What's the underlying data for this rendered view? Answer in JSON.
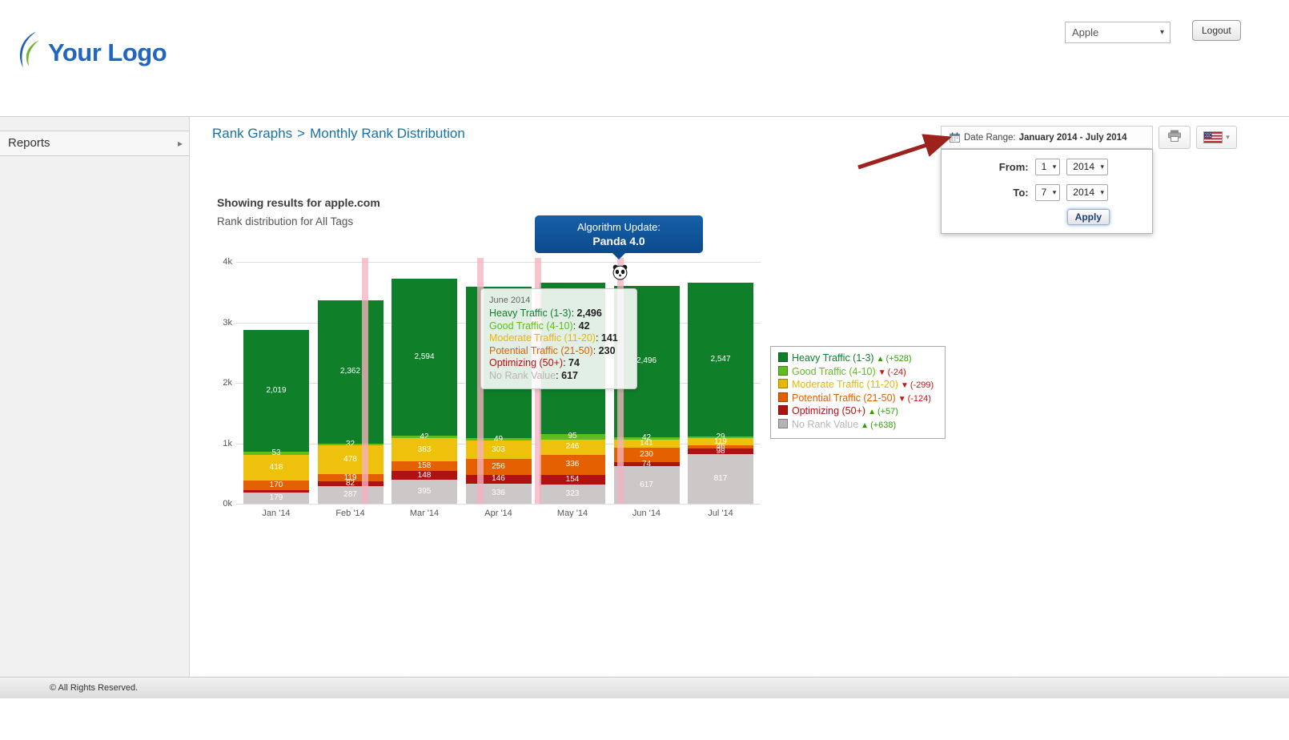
{
  "header": {
    "logo_text": "Your Logo",
    "account_dropdown_value": "Apple",
    "logout_label": "Logout"
  },
  "sidebar": {
    "items": [
      {
        "label": "Reports"
      }
    ]
  },
  "main": {
    "breadcrumb": {
      "section": "Rank Graphs",
      "separator": ">",
      "page": "Monthly Rank Distribution"
    },
    "results_heading": "Showing results for apple.com",
    "results_subheading": "Rank distribution for All Tags"
  },
  "date_range": {
    "toggle_label": "Date Range:",
    "toggle_value": "January 2014 - July 2014",
    "from_label": "From:",
    "from_month": "1",
    "from_year": "2014",
    "to_label": "To:",
    "to_month": "7",
    "to_year": "2014",
    "apply_label": "Apply"
  },
  "annotation": {
    "title": "Algorithm Update:",
    "name": "Panda 4.0"
  },
  "tooltip": {
    "title": "June 2014",
    "rows": [
      {
        "label": "Heavy Traffic (1-3)",
        "value": "2,496",
        "color": "#0f7f2a"
      },
      {
        "label": "Good Traffic (4-10)",
        "value": "42",
        "color": "#5fbe1d"
      },
      {
        "label": "Moderate Traffic (11-20)",
        "value": "141",
        "color": "#e6b800"
      },
      {
        "label": "Potential Traffic (21-50)",
        "value": "230",
        "color": "#e25f00"
      },
      {
        "label": "Optimizing (50+)",
        "value": "74",
        "color": "#b01111"
      },
      {
        "label": "No Rank Value",
        "value": "617",
        "color": "#b8b3b3"
      }
    ]
  },
  "legend": {
    "items": [
      {
        "label": "Heavy Traffic (1-3)",
        "color": "#0f7f2a",
        "direction": "up",
        "delta": "(+528)"
      },
      {
        "label": "Good Traffic (4-10)",
        "color": "#5fbe1d",
        "direction": "down",
        "delta": "(-24)"
      },
      {
        "label": "Moderate Traffic (11-20)",
        "color": "#e6b800",
        "direction": "down",
        "delta": "(-299)"
      },
      {
        "label": "Potential Traffic (21-50)",
        "color": "#e25f00",
        "direction": "down",
        "delta": "(-124)"
      },
      {
        "label": "Optimizing (50+)",
        "color": "#b01111",
        "direction": "up",
        "delta": "(+57)"
      },
      {
        "label": "No Rank Value",
        "color": "#b8b3b3",
        "direction": "up",
        "delta": "(+638)"
      }
    ]
  },
  "chart_data": {
    "type": "bar",
    "stacked": true,
    "categories": [
      "Jan '14",
      "Feb '14",
      "Mar '14",
      "Apr '14",
      "May '14",
      "Jun '14",
      "Jul '14"
    ],
    "ylim": [
      0,
      4000
    ],
    "yticks": [
      {
        "value": 0,
        "label": "0k"
      },
      {
        "value": 1000,
        "label": "1k"
      },
      {
        "value": 2000,
        "label": "2k"
      },
      {
        "value": 3000,
        "label": "3k"
      },
      {
        "value": 4000,
        "label": "4k"
      }
    ],
    "series": [
      {
        "name": "Heavy Traffic (1-3)",
        "color": "#0f7f2a",
        "values": [
          2019,
          2362,
          2594,
          2500,
          2500,
          2496,
          2547
        ],
        "labels": [
          "2,019",
          "2,362",
          "2,594",
          "",
          "",
          "2,496",
          "2,547"
        ]
      },
      {
        "name": "Good Traffic (4-10)",
        "color": "#5fbe1d",
        "values": [
          53,
          32,
          42,
          49,
          95,
          42,
          29
        ],
        "labels": [
          "53",
          "32",
          "42",
          "49",
          "95",
          "42",
          "29"
        ]
      },
      {
        "name": "Moderate Traffic (11-20)",
        "color": "#eec10c",
        "values": [
          418,
          478,
          383,
          303,
          246,
          141,
          119
        ],
        "labels": [
          "418",
          "478",
          "383",
          "303",
          "246",
          "141",
          "119"
        ]
      },
      {
        "name": "Potential Traffic (21-50)",
        "color": "#e56000",
        "values": [
          170,
          119,
          158,
          256,
          336,
          230,
          46
        ],
        "labels": [
          "170",
          "119",
          "158",
          "256",
          "336",
          "230",
          "46"
        ]
      },
      {
        "name": "Optimizing (50+)",
        "color": "#b01111",
        "values": [
          41,
          82,
          148,
          146,
          154,
          74,
          98
        ],
        "labels": [
          "",
          "82",
          "148",
          "146",
          "154",
          "74",
          "98"
        ]
      },
      {
        "name": "No Rank Value",
        "color": "#cdc8c8",
        "values": [
          179,
          287,
          395,
          336,
          323,
          617,
          817
        ],
        "labels": [
          "179",
          "287",
          "395",
          "336",
          "323",
          "617",
          "817"
        ]
      }
    ],
    "event_lines": [
      0.246,
      0.466,
      0.576,
      0.733
    ],
    "event_annotation": "Algorithm Update: Panda 4.0",
    "legend_position": "right",
    "grid": true
  },
  "footer": {
    "copyright": "© All Rights Reserved."
  }
}
